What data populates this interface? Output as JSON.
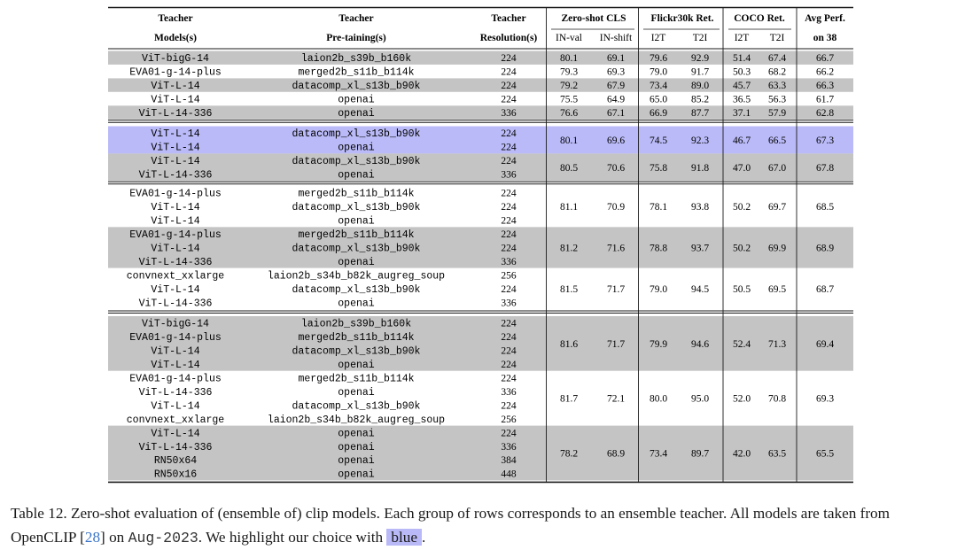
{
  "header": {
    "col_model": [
      "Teacher",
      "Models(s)"
    ],
    "col_pretrain": [
      "Teacher",
      "Pre-taining(s)"
    ],
    "col_res": [
      "Teacher",
      "Resolution(s)"
    ],
    "zero_shot": "Zero-shot CLS",
    "flickr": "Flickr30k Ret.",
    "coco": "COCO Ret.",
    "avg": [
      "Avg Perf.",
      "on 38"
    ],
    "sub": [
      "IN-val",
      "IN-shift",
      "I2T",
      "T2I",
      "I2T",
      "T2I"
    ]
  },
  "blocks": [
    {
      "groups": [
        {
          "shade": "gray",
          "rows": [
            {
              "model": "ViT-bigG-14",
              "pretrain": "laion2b_s39b_b160k",
              "res": "224"
            }
          ],
          "metrics": [
            "80.1",
            "69.1",
            "79.6",
            "92.9",
            "51.4",
            "67.4",
            "66.7"
          ]
        },
        {
          "shade": "white",
          "rows": [
            {
              "model": "EVA01-g-14-plus",
              "pretrain": "merged2b_s11b_b114k",
              "res": "224"
            }
          ],
          "metrics": [
            "79.3",
            "69.3",
            "79.0",
            "91.7",
            "50.3",
            "68.2",
            "66.2"
          ]
        },
        {
          "shade": "gray",
          "rows": [
            {
              "model": "ViT-L-14",
              "pretrain": "datacomp_xl_s13b_b90k",
              "res": "224"
            }
          ],
          "metrics": [
            "79.2",
            "67.9",
            "73.4",
            "89.0",
            "45.7",
            "63.3",
            "66.3"
          ]
        },
        {
          "shade": "white",
          "rows": [
            {
              "model": "ViT-L-14",
              "pretrain": "openai",
              "res": "224"
            }
          ],
          "metrics": [
            "75.5",
            "64.9",
            "65.0",
            "85.2",
            "36.5",
            "56.3",
            "61.7"
          ]
        },
        {
          "shade": "gray",
          "rows": [
            {
              "model": "ViT-L-14-336",
              "pretrain": "openai",
              "res": "336"
            }
          ],
          "metrics": [
            "76.6",
            "67.1",
            "66.9",
            "87.7",
            "37.1",
            "57.9",
            "62.8"
          ]
        }
      ]
    },
    {
      "groups": [
        {
          "shade": "blue",
          "rows": [
            {
              "model": "ViT-L-14",
              "pretrain": "datacomp_xl_s13b_b90k",
              "res": "224"
            },
            {
              "model": "ViT-L-14",
              "pretrain": "openai",
              "res": "224"
            }
          ],
          "metrics": [
            "80.1",
            "69.6",
            "74.5",
            "92.3",
            "46.7",
            "66.5",
            "67.3"
          ]
        },
        {
          "shade": "gray",
          "rows": [
            {
              "model": "ViT-L-14",
              "pretrain": "datacomp_xl_s13b_b90k",
              "res": "224"
            },
            {
              "model": "ViT-L-14-336",
              "pretrain": "openai",
              "res": "336"
            }
          ],
          "metrics": [
            "80.5",
            "70.6",
            "75.8",
            "91.8",
            "47.0",
            "67.0",
            "67.8"
          ]
        }
      ]
    },
    {
      "groups": [
        {
          "shade": "white",
          "rows": [
            {
              "model": "EVA01-g-14-plus",
              "pretrain": "merged2b_s11b_b114k",
              "res": "224"
            },
            {
              "model": "ViT-L-14",
              "pretrain": "datacomp_xl_s13b_b90k",
              "res": "224"
            },
            {
              "model": "ViT-L-14",
              "pretrain": "openai",
              "res": "224"
            }
          ],
          "metrics": [
            "81.1",
            "70.9",
            "78.1",
            "93.8",
            "50.2",
            "69.7",
            "68.5"
          ]
        },
        {
          "shade": "gray",
          "rows": [
            {
              "model": "EVA01-g-14-plus",
              "pretrain": "merged2b_s11b_b114k",
              "res": "224"
            },
            {
              "model": "ViT-L-14",
              "pretrain": "datacomp_xl_s13b_b90k",
              "res": "224"
            },
            {
              "model": "ViT-L-14-336",
              "pretrain": "openai",
              "res": "336"
            }
          ],
          "metrics": [
            "81.2",
            "71.6",
            "78.8",
            "93.7",
            "50.2",
            "69.9",
            "68.9"
          ]
        },
        {
          "shade": "white",
          "rows": [
            {
              "model": "convnext_xxlarge",
              "pretrain": "laion2b_s34b_b82k_augreg_soup",
              "res": "256"
            },
            {
              "model": "ViT-L-14",
              "pretrain": "datacomp_xl_s13b_b90k",
              "res": "224"
            },
            {
              "model": "ViT-L-14-336",
              "pretrain": "openai",
              "res": "336"
            }
          ],
          "metrics": [
            "81.5",
            "71.7",
            "79.0",
            "94.5",
            "50.5",
            "69.5",
            "68.7"
          ]
        }
      ]
    },
    {
      "groups": [
        {
          "shade": "gray",
          "rows": [
            {
              "model": "ViT-bigG-14",
              "pretrain": "laion2b_s39b_b160k",
              "res": "224"
            },
            {
              "model": "EVA01-g-14-plus",
              "pretrain": "merged2b_s11b_b114k",
              "res": "224"
            },
            {
              "model": "ViT-L-14",
              "pretrain": "datacomp_xl_s13b_b90k",
              "res": "224"
            },
            {
              "model": "ViT-L-14",
              "pretrain": "openai",
              "res": "224"
            }
          ],
          "metrics": [
            "81.6",
            "71.7",
            "79.9",
            "94.6",
            "52.4",
            "71.3",
            "69.4"
          ]
        },
        {
          "shade": "white",
          "rows": [
            {
              "model": "EVA01-g-14-plus",
              "pretrain": "merged2b_s11b_b114k",
              "res": "224"
            },
            {
              "model": "ViT-L-14-336",
              "pretrain": "openai",
              "res": "336"
            },
            {
              "model": "ViT-L-14",
              "pretrain": "datacomp_xl_s13b_b90k",
              "res": "224"
            },
            {
              "model": "convnext_xxlarge",
              "pretrain": "laion2b_s34b_b82k_augreg_soup",
              "res": "256"
            }
          ],
          "metrics": [
            "81.7",
            "72.1",
            "80.0",
            "95.0",
            "52.0",
            "70.8",
            "69.3"
          ]
        },
        {
          "shade": "gray",
          "rows": [
            {
              "model": "ViT-L-14",
              "pretrain": "openai",
              "res": "224"
            },
            {
              "model": "ViT-L-14-336",
              "pretrain": "openai",
              "res": "336"
            },
            {
              "model": "RN50x64",
              "pretrain": "openai",
              "res": "384"
            },
            {
              "model": "RN50x16",
              "pretrain": "openai",
              "res": "448"
            }
          ],
          "metrics": [
            "78.2",
            "68.9",
            "73.4",
            "89.7",
            "42.0",
            "63.5",
            "65.5"
          ]
        }
      ]
    }
  ],
  "colors": {
    "gray": "#c4c4c4",
    "blue": "#babaf8",
    "white": "#ffffff",
    "rule": "#1a1a1a"
  },
  "caption": {
    "part1": "Table 12. Zero-shot evaluation of (ensemble of) clip models. Each group of rows corresponds to an ensemble teacher. All models are taken from OpenCLIP [",
    "cite": "28",
    "part2": "] on ",
    "date": "Aug-2023",
    "part3": ". We highlight our choice with ",
    "highlight": "blue",
    "part4": "."
  }
}
